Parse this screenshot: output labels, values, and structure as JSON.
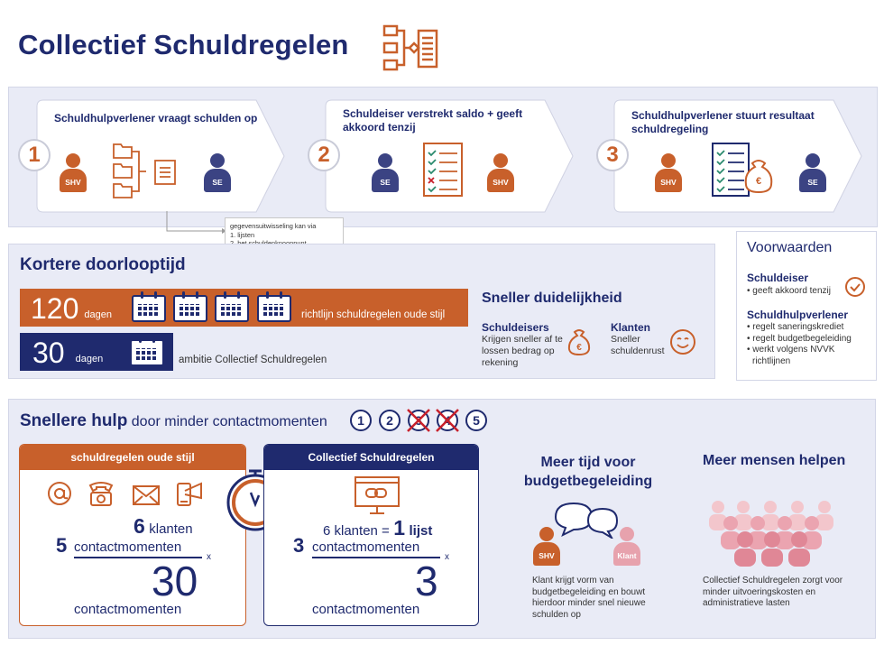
{
  "title": "Collectief Schuldregelen",
  "steps": [
    {
      "num": "1",
      "title": "Schuldhulpverlener vraagt schulden op",
      "left_person": "SHV",
      "right_person": "SE"
    },
    {
      "num": "2",
      "title": "Schuldeiser verstrekt saldo + geeft akkoord tenzij",
      "left_person": "SE",
      "right_person": "SHV"
    },
    {
      "num": "3",
      "title": "Schuldhulpverlener stuurt resultaat schuldregeling",
      "left_person": "SHV",
      "right_person": "SE"
    }
  ],
  "note": {
    "intro": "gegevensuitwisseling kan via",
    "items": [
      "1. lijsten",
      "2. het schuldenknooppunt"
    ]
  },
  "kortere": {
    "heading": "Kortere doorlooptijd",
    "old": {
      "days": "120",
      "unit": "dagen",
      "label": "richtlijn schuldregelen oude stijl"
    },
    "new": {
      "days": "30",
      "unit": "dagen",
      "label": "ambitie Collectief Schuldregelen"
    }
  },
  "duidelijkheid": {
    "heading": "Sneller duidelijkheid",
    "schuldeisers_title": "Schuldeisers",
    "schuldeisers_text": "Krijgen sneller af te lossen bedrag op rekening",
    "klanten_title": "Klanten",
    "klanten_text": "Sneller schuldenrust"
  },
  "voorwaarden": {
    "heading": "Voorwaarden",
    "schuldeiser_title": "Schuldeiser",
    "schuldeiser_items": [
      "• geeft akkoord tenzij"
    ],
    "shv_title": "Schuldhulpverlener",
    "shv_items": [
      "• regelt saneringskrediet",
      "• regelt budgetbegeleiding",
      "• werkt volgens NVVK",
      "richtlijnen"
    ]
  },
  "snellere": {
    "heading_bold": "Snellere hulp",
    "heading_rest": "door minder contactmomenten",
    "circles": [
      "1",
      "2",
      "3",
      "4",
      "5"
    ],
    "old_card": {
      "header": "schuldregelen oude stijl",
      "top_num": "6",
      "top_word": "klanten",
      "left_num": "5",
      "mid_word": "contactmomenten",
      "times": "x",
      "result": "30",
      "result_word": "contactmomenten"
    },
    "new_card": {
      "header": "Collectief Schuldregelen",
      "top_prefix": "6 klanten =",
      "top_num": "1",
      "top_word": "lijst",
      "left_num": "3",
      "mid_word": "contactmomenten",
      "times": "x",
      "result": "3",
      "result_word": "contactmomenten"
    },
    "budget": {
      "heading": "Meer tijd voor budgetbegeleiding",
      "p1": "SHV",
      "p2": "Klant",
      "text": "Klant krijgt vorm van budgetbegeleiding en bouwt hierdoor minder snel nieuwe schulden op"
    },
    "mensen": {
      "heading": "Meer mensen helpen",
      "text": "Collectief Schuldregelen zorgt voor minder uitvoeringskosten en administratieve lasten"
    }
  },
  "colors": {
    "navy": "#1f2a6e",
    "orange": "#c8602b",
    "panel": "#e9ebf6",
    "pink": "#e7a2ad"
  }
}
